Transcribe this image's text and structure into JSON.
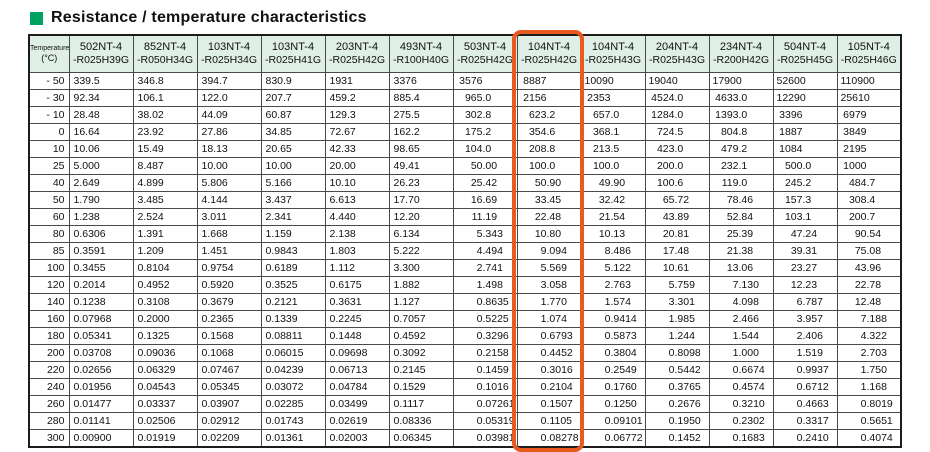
{
  "title": {
    "text": "Resistance / temperature characteristics",
    "accent_color": "#00a264"
  },
  "table": {
    "temp_header_line1": "Temperature",
    "temp_header_line2": "(°C)",
    "header_bg": "#e0efe6",
    "highlight_color": "#e85a20",
    "highlighted_column": 7,
    "columns": [
      {
        "model": "502NT-4",
        "code": "-R025H39G"
      },
      {
        "model": "852NT-4",
        "code": "-R050H34G"
      },
      {
        "model": "103NT-4",
        "code": "-R025H34G"
      },
      {
        "model": "103NT-4",
        "code": "-R025H41G"
      },
      {
        "model": "203NT-4",
        "code": "-R025H42G"
      },
      {
        "model": "493NT-4",
        "code": "-R100H40G"
      },
      {
        "model": "503NT-4",
        "code": "-R025H42G"
      },
      {
        "model": "104NT-4",
        "code": "-R025H42G"
      },
      {
        "model": "104NT-4",
        "code": "-R025H43G"
      },
      {
        "model": "204NT-4",
        "code": "-R025H43G"
      },
      {
        "model": "234NT-4",
        "code": "-R200H42G"
      },
      {
        "model": "504NT-4",
        "code": "-R025H45G"
      },
      {
        "model": "105NT-4",
        "code": "-R025H46G"
      }
    ],
    "temps": [
      "- 50",
      "- 30",
      "- 10",
      "0",
      "10",
      "25",
      "40",
      "50",
      "60",
      "80",
      "85",
      "100",
      "120",
      "140",
      "160",
      "180",
      "200",
      "220",
      "240",
      "260",
      "280",
      "300"
    ],
    "rows": [
      [
        "339.5",
        "346.8",
        "394.7",
        "830.9",
        "1931",
        "3376",
        "3576",
        "8887",
        "10090",
        "19040",
        "17900",
        "52600",
        "110900"
      ],
      [
        "92.34",
        "106.1",
        "122.0",
        "207.7",
        "459.2",
        "885.4",
        "965.0",
        "2156",
        "2353",
        "4524.0",
        "4633.0",
        "12290",
        "25610"
      ],
      [
        "28.48",
        "38.02",
        "44.09",
        "60.87",
        "129.3",
        "275.5",
        "302.8",
        "623.2",
        "657.0",
        "1284.0",
        "1393.0",
        "3396",
        "6979"
      ],
      [
        "16.64",
        "23.92",
        "27.86",
        "34.85",
        "72.67",
        "162.2",
        "175.2",
        "354.6",
        "368.1",
        "724.5",
        "804.8",
        "1887",
        "3849"
      ],
      [
        "10.06",
        "15.49",
        "18.13",
        "20.65",
        "42.33",
        "98.65",
        "104.0",
        "208.8",
        "213.5",
        "423.0",
        "479.2",
        "1084",
        "2195"
      ],
      [
        "5.000",
        "8.487",
        "10.00",
        "10.00",
        "20.00",
        "49.41",
        "50.00",
        "100.0",
        "100.0",
        "200.0",
        "232.1",
        "500.0",
        "1000"
      ],
      [
        "2.649",
        "4.899",
        "5.806",
        "5.166",
        "10.10",
        "26.23",
        "25.42",
        "50.90",
        "49.90",
        "100.6",
        "119.0",
        "245.2",
        "484.7"
      ],
      [
        "1.790",
        "3.485",
        "4.144",
        "3.437",
        "6.613",
        "17.70",
        "16.69",
        "33.45",
        "32.42",
        "65.72",
        "78.46",
        "157.3",
        "308.4"
      ],
      [
        "1.238",
        "2.524",
        "3.011",
        "2.341",
        "4.440",
        "12.20",
        "11.19",
        "22.48",
        "21.54",
        "43.89",
        "52.84",
        "103.1",
        "200.7"
      ],
      [
        "0.6306",
        "1.391",
        "1.668",
        "1.159",
        "2.138",
        "6.134",
        "5.343",
        "10.80",
        "10.13",
        "20.81",
        "25.39",
        "47.24",
        "90.54"
      ],
      [
        "0.3591",
        "1.209",
        "1.451",
        "0.9843",
        "1.803",
        "5.222",
        "4.494",
        "9.094",
        "8.486",
        "17.48",
        "21.38",
        "39.31",
        "75.08"
      ],
      [
        "0.3455",
        "0.8104",
        "0.9754",
        "0.6189",
        "1.112",
        "3.300",
        "2.741",
        "5.569",
        "5.122",
        "10.61",
        "13.06",
        "23.27",
        "43.96"
      ],
      [
        "0.2014",
        "0.4952",
        "0.5920",
        "0.3525",
        "0.6175",
        "1.882",
        "1.498",
        "3.058",
        "2.763",
        "5.759",
        "7.130",
        "12.23",
        "22.78"
      ],
      [
        "0.1238",
        "0.3108",
        "0.3679",
        "0.2121",
        "0.3631",
        "1.127",
        "0.8635",
        "1.770",
        "1.574",
        "3.301",
        "4.098",
        "6.787",
        "12.48"
      ],
      [
        "0.07968",
        "0.2000",
        "0.2365",
        "0.1339",
        "0.2245",
        "0.7057",
        "0.5225",
        "1.074",
        "0.9414",
        "1.985",
        "2.466",
        "3.957",
        "7.188"
      ],
      [
        "0.05341",
        "0.1325",
        "0.1568",
        "0.08811",
        "0.1448",
        "0.4592",
        "0.3296",
        "0.6793",
        "0.5873",
        "1.244",
        "1.544",
        "2.406",
        "4.322"
      ],
      [
        "0.03708",
        "0.09036",
        "0.1068",
        "0.06015",
        "0.09698",
        "0.3092",
        "0.2158",
        "0.4452",
        "0.3804",
        "0.8098",
        "1.000",
        "1.519",
        "2.703"
      ],
      [
        "0.02656",
        "0.06329",
        "0.07467",
        "0.04239",
        "0.06713",
        "0.2145",
        "0.1459",
        "0.3016",
        "0.2549",
        "0.5442",
        "0.6674",
        "0.9937",
        "1.750"
      ],
      [
        "0.01956",
        "0.04543",
        "0.05345",
        "0.03072",
        "0.04784",
        "0.1529",
        "0.1016",
        "0.2104",
        "0.1760",
        "0.3765",
        "0.4574",
        "0.6712",
        "1.168"
      ],
      [
        "0.01477",
        "0.03337",
        "0.03907",
        "0.02285",
        "0.03499",
        "0.1117",
        "0.07261",
        "0.1507",
        "0.1250",
        "0.2676",
        "0.3210",
        "0.4663",
        "0.8019"
      ],
      [
        "0.01141",
        "0.02506",
        "0.02912",
        "0.01743",
        "0.02619",
        "0.08336",
        "0.05319",
        "0.1105",
        "0.09101",
        "0.1950",
        "0.2302",
        "0.3317",
        "0.5651"
      ],
      [
        "0.00900",
        "0.01919",
        "0.02209",
        "0.01361",
        "0.02003",
        "0.06345",
        "0.03981",
        "0.08278",
        "0.06772",
        "0.1452",
        "0.1683",
        "0.2410",
        "0.4074"
      ]
    ]
  }
}
